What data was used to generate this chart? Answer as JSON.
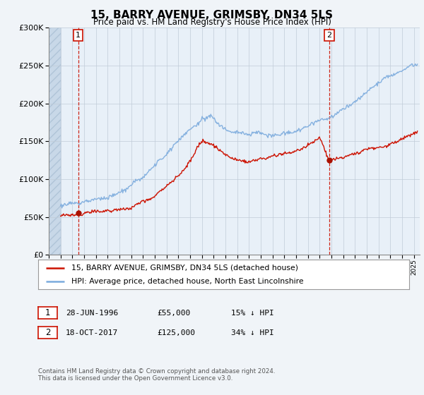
{
  "title": "15, BARRY AVENUE, GRIMSBY, DN34 5LS",
  "subtitle": "Price paid vs. HM Land Registry's House Price Index (HPI)",
  "sale1_date": "28-JUN-1996",
  "sale1_price": 55000,
  "sale1_label": "1",
  "sale1_year": 1996.49,
  "sale2_date": "18-OCT-2017",
  "sale2_price": 125000,
  "sale2_label": "2",
  "sale2_year": 2017.8,
  "legend_line1": "15, BARRY AVENUE, GRIMSBY, DN34 5LS (detached house)",
  "legend_line2": "HPI: Average price, detached house, North East Lincolnshire",
  "footer": "Contains HM Land Registry data © Crown copyright and database right 2024.\nThis data is licensed under the Open Government Licence v3.0.",
  "hpi_color": "#7aaadd",
  "sale_color": "#cc1100",
  "marker_color": "#aa1100",
  "background_color": "#f0f4f8",
  "plot_bg_color": "#e8f0f8",
  "ylim": [
    0,
    300000
  ],
  "xlim_start": 1994.0,
  "xlim_end": 2025.5,
  "hatch_end": 1995.0
}
